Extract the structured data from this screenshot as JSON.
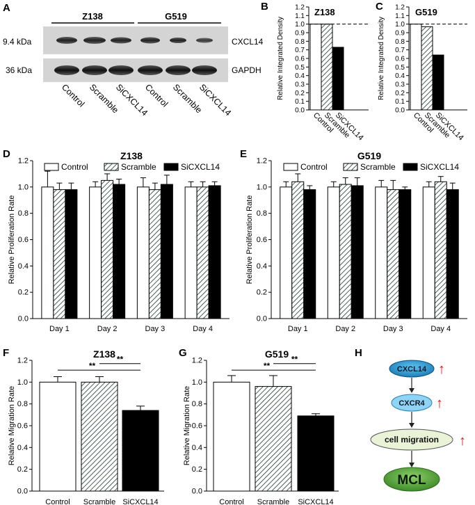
{
  "panels": {
    "A": {
      "letter": "A",
      "group_labels": [
        "Z138",
        "G519"
      ],
      "left_labels": [
        "9.4 kDa",
        "36 kDa"
      ],
      "right_labels": [
        "CXCL14",
        "GAPDH"
      ],
      "lane_labels": [
        "Control",
        "Scramble",
        "SiCXCL14",
        "Control",
        "Scramble",
        "SiCXCL14"
      ]
    },
    "B": {
      "letter": "B"
    },
    "C": {
      "letter": "C"
    },
    "D": {
      "letter": "D"
    },
    "E": {
      "letter": "E"
    },
    "F": {
      "letter": "F"
    },
    "G": {
      "letter": "G"
    },
    "H": {
      "letter": "H",
      "nodes": [
        "CXCL14",
        "CXCR4",
        "cell migration",
        "MCL"
      ],
      "up_arrow": "↑",
      "colors": {
        "cxcl14": "#1f9bd7",
        "cxcr4": "#8fd3f5",
        "migration": "#eaf2d8",
        "mcl": "#5aa83c",
        "arrow": "#e01010"
      }
    }
  },
  "chart_data": [
    {
      "id": "B",
      "type": "bar",
      "title": "Z138",
      "ylabel": "Relative Integrated Density",
      "categories": [
        "Control",
        "Scramble",
        "SiCXCL14"
      ],
      "values": [
        1.0,
        1.0,
        0.73
      ],
      "ylim": [
        0,
        1.2
      ],
      "yticks": [
        "0.0",
        "0.1",
        "0.2",
        "0.3",
        "0.4",
        "0.5",
        "0.6",
        "0.7",
        "0.8",
        "0.9",
        "1.0",
        "1.1",
        "1.2"
      ],
      "reference_line": 1.0
    },
    {
      "id": "C",
      "type": "bar",
      "title": "G519",
      "ylabel": "Relative Integrated Density",
      "categories": [
        "Control",
        "Scramble",
        "SiCXCL14"
      ],
      "values": [
        1.0,
        0.97,
        0.64
      ],
      "ylim": [
        0,
        1.2
      ],
      "yticks": [
        "0.0",
        "0.1",
        "0.2",
        "0.3",
        "0.4",
        "0.5",
        "0.6",
        "0.7",
        "0.8",
        "0.9",
        "1.0",
        "1.1",
        "1.2"
      ],
      "reference_line": 1.0
    },
    {
      "id": "D",
      "type": "bar",
      "title": "Z138",
      "ylabel": "Relative Proliferation Rate",
      "categories": [
        "Day 1",
        "Day 2",
        "Day 3",
        "Day 4"
      ],
      "legend": [
        "Control",
        "Scramble",
        "SiCXCL14"
      ],
      "series": [
        {
          "name": "Control",
          "values": [
            1.0,
            1.0,
            1.0,
            1.0
          ],
          "errors": [
            0.12,
            0.04,
            0.07,
            0.04
          ]
        },
        {
          "name": "Scramble",
          "values": [
            0.98,
            1.05,
            0.98,
            1.0
          ],
          "errors": [
            0.05,
            0.05,
            0.05,
            0.04
          ]
        },
        {
          "name": "SiCXCL14",
          "values": [
            0.98,
            1.02,
            1.02,
            1.01
          ],
          "errors": [
            0.05,
            0.04,
            0.07,
            0.03
          ]
        }
      ],
      "ylim": [
        0,
        1.2
      ],
      "yticks": [
        "0.0",
        "0.2",
        "0.4",
        "0.6",
        "0.8",
        "1.0",
        "1.2"
      ]
    },
    {
      "id": "E",
      "type": "bar",
      "title": "G519",
      "ylabel": "Relative Proliferation Rate",
      "categories": [
        "Day 1",
        "Day 2",
        "Day 3",
        "Day 4"
      ],
      "legend": [
        "Control",
        "Scramble",
        "SiCXCL14"
      ],
      "series": [
        {
          "name": "Control",
          "values": [
            1.0,
            1.0,
            1.0,
            1.0
          ],
          "errors": [
            0.04,
            0.04,
            0.05,
            0.04
          ]
        },
        {
          "name": "Scramble",
          "values": [
            1.04,
            1.02,
            0.98,
            1.04
          ],
          "errors": [
            0.06,
            0.05,
            0.07,
            0.04
          ]
        },
        {
          "name": "SiCXCL14",
          "values": [
            0.98,
            1.01,
            0.98,
            0.98
          ],
          "errors": [
            0.03,
            0.06,
            0.02,
            0.05
          ]
        }
      ],
      "ylim": [
        0,
        1.2
      ],
      "yticks": [
        "0.0",
        "0.2",
        "0.4",
        "0.6",
        "0.8",
        "1.0",
        "1.2"
      ]
    },
    {
      "id": "F",
      "type": "bar",
      "title": "Z138",
      "ylabel": "Relative Migration Rate",
      "categories": [
        "Control",
        "Scramble",
        "SiCXCL14"
      ],
      "values": [
        1.0,
        1.0,
        0.74
      ],
      "errors": [
        0.05,
        0.05,
        0.04
      ],
      "ylim": [
        0,
        1.2
      ],
      "yticks": [
        "0.0",
        "0.2",
        "0.4",
        "0.6",
        "0.8",
        "1.0",
        "1.2"
      ],
      "significance": [
        "**",
        "**"
      ]
    },
    {
      "id": "G",
      "type": "bar",
      "title": "G519",
      "ylabel": "Relative Migration Rate",
      "categories": [
        "Control",
        "Scramble",
        "SiCXCL14"
      ],
      "values": [
        1.0,
        0.96,
        0.69
      ],
      "errors": [
        0.06,
        0.1,
        0.02
      ],
      "ylim": [
        0,
        1.2
      ],
      "yticks": [
        "0.0",
        "0.2",
        "0.4",
        "0.6",
        "0.8",
        "1.0",
        "1.2"
      ],
      "significance": [
        "**",
        "**"
      ]
    }
  ]
}
